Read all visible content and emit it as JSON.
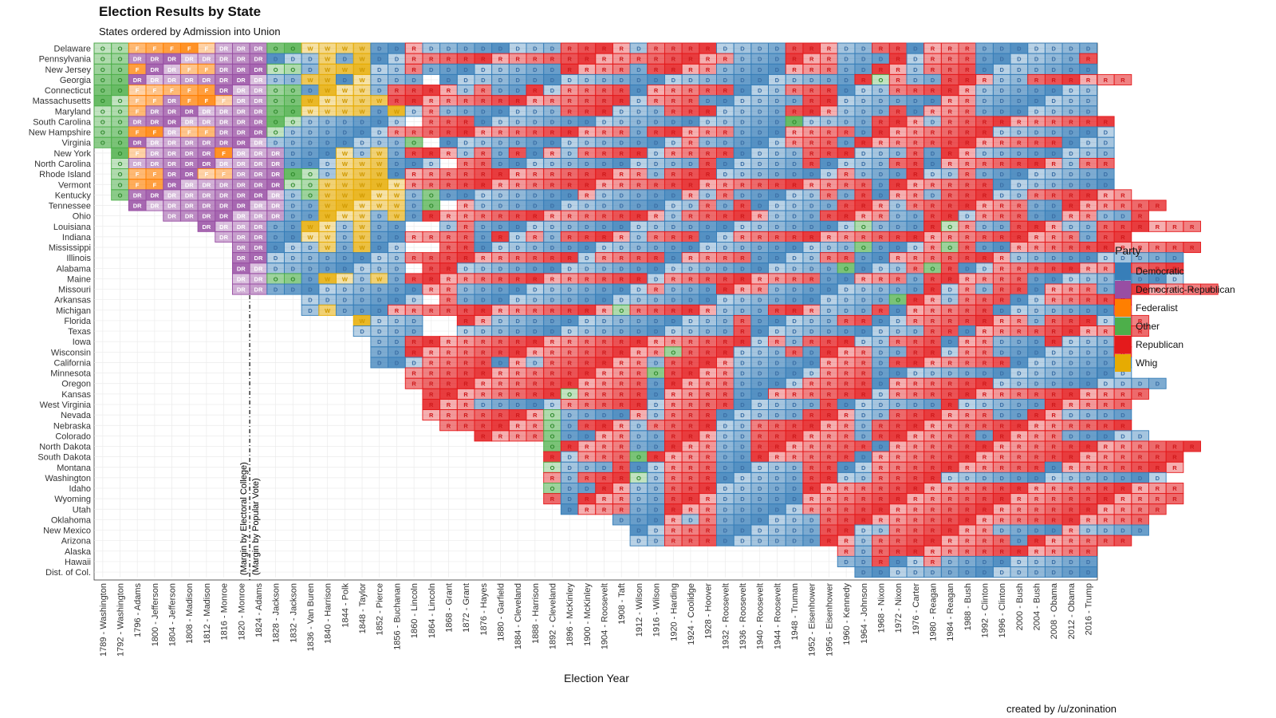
{
  "title": "Election Results by State",
  "subtitle": "States ordered by Admission into Union",
  "credit": "created by /u/zonination",
  "chart_data": {
    "type": "heatmap",
    "xlabel": "Election Year",
    "ylabel": "",
    "x": [
      "1789 - Washington",
      "1792 - Washington",
      "1796 - Adams",
      "1800 - Jefferson",
      "1804 - Jefferson",
      "1808 - Madison",
      "1812 - Madison",
      "1816 - Monroe",
      "1820 - Monroe",
      "1824 - Adams",
      "1828 - Jackson",
      "1832 - Jackson",
      "1836 - Van Buren",
      "1840 - Harrison",
      "1844 - Polk",
      "1848 - Taylor",
      "1852 - Pierce",
      "1856 - Buchanan",
      "1860 - Lincoln",
      "1864 - Lincoln",
      "1868 - Grant",
      "1872 - Grant",
      "1876 - Hayes",
      "1880 - Garfield",
      "1884 - Cleveland",
      "1888 - Harrison",
      "1892 - Cleveland",
      "1896 - McKinley",
      "1900 - McKinley",
      "1904 - Roosevelt",
      "1908 - Taft",
      "1912 - Wilson",
      "1916 - Wilson",
      "1920 - Harding",
      "1924 - Coolidge",
      "1928 - Hoover",
      "1932 - Roosevelt",
      "1936 - Roosevelt",
      "1940 - Roosevelt",
      "1944 - Roosevelt",
      "1948 - Truman",
      "1952 - Eisenhower",
      "1956 - Eisenhower",
      "1960 - Kennedy",
      "1964 - Johnson",
      "1968 - Nixon",
      "1972 - Nixon",
      "1976 - Carter",
      "1980 - Reagan",
      "1984 - Reagan",
      "1988 - Bush",
      "1992 - Clinton",
      "1996 - Clinton",
      "2000 - Bush",
      "2004 - Bush",
      "2008 - Obama",
      "2012 - Obama",
      "2016 - Trump"
    ],
    "legend": {
      "title": "Party",
      "position": "right",
      "entries": [
        {
          "code": "D",
          "label": "Democratic",
          "color": "#377eb8"
        },
        {
          "code": "DR",
          "label": "Democratic-Republican",
          "color": "#984ea3"
        },
        {
          "code": "F",
          "label": "Federalist",
          "color": "#ff7f00"
        },
        {
          "code": "O",
          "label": "Other",
          "color": "#4daf4a"
        },
        {
          "code": "R",
          "label": "Republican",
          "color": "#e41a1c"
        },
        {
          "code": "W",
          "label": "Whig",
          "color": "#e6ab02"
        }
      ]
    },
    "annotations": [
      "(Margin by Electoral College)",
      "(Margin by Popular Vote)"
    ],
    "annotation_after_column": "1820 - Monroe",
    "states": [
      {
        "name": "Delaware",
        "start": 0,
        "cells": "O O F F F F F DR DR DR O O W W W W D D R D D D D D D D D R R R R D R R R R D D D D R R R D D R R D R R R D D D D D D D"
      },
      {
        "name": "Pennsylvania",
        "start": 0,
        "cells": "O O DR DR DR DR DR DR DR DR D D D W D W D D R R R R R R R R R R R R R R R R R R R D D D R R R D D D R D R R R D D D D D D R"
      },
      {
        "name": "New Jersey",
        "start": 0,
        "cells": "O O F DR DR F F DR DR DR O O D W W W D D R D D D D D D D D R R R R D R R R R D D D D R R R D D R R D R R R D D D D D D D"
      },
      {
        "name": "Georgia",
        "start": 0,
        "cells": "O O DR DR DR DR DR DR DR DR D D W W D W D D D - D D D D D D D D D D D D D D D D D D D D D D D D R O R D D R R R D D R R R R R R"
      },
      {
        "name": "Connecticut",
        "start": 0,
        "cells": "O O F F F F F DR DR DR O O D W W W D R R R R D R D D R D R R R R D R R R R R D D D R R R D D D R R R R R D D D D D D D"
      },
      {
        "name": "Massachusetts",
        "start": 0,
        "cells": "O O F F DR F F F DR DR O O W W W W W R R R R R R R R R R R R R R D R R R D D D D D D R R D D D D D D R R D D D D D D D"
      },
      {
        "name": "Maryland",
        "start": 0,
        "cells": "O O F DR DR DR DR DR DR DR O O W W W W D W D R D D D D D D D R R R D D D R R R D D D D R R R D D D R D R R R D D D D D D D"
      },
      {
        "name": "South Carolina",
        "start": 0,
        "cells": "O O DR DR DR DR DR DR DR DR O O D D D D D D - R R R D D D D D D D D D D D D D D D D D D O D D D D R R R D R R R R R R R R R R"
      },
      {
        "name": "New Hampshire",
        "start": 0,
        "cells": "O O F F DR F F DR DR DR O D D D D D D R R R R R R R R R R R R R R D R R R R R D D D R R R R D R R R R R R R D D D D D D D"
      },
      {
        "name": "Virginia",
        "start": 0,
        "cells": "O O DR DR DR DR DR DR DR DR D D D D D D D D O - D D D D D D D D D D D D D D R D D D D D R R R D R R R R R R R R R R R R D D D"
      },
      {
        "name": "New York",
        "start": 1,
        "cells": "O F DR DR DR DR F DR DR DR D D D W D W D R R R D R D R D R D R R R R D R R R R D D D D R R R D D D R D R R D D D D D D D D"
      },
      {
        "name": "North Carolina",
        "start": 1,
        "cells": "O DR DR DR DR DR DR DR DR DR D D D W W W D D D - R R D D D D D D D D D D D D R D D D D D R D D D D R R D R R R R R R R D R R"
      },
      {
        "name": "Rhode Island",
        "start": 1,
        "cells": "O F F DR DR F F DR DR DR O O D W W W D R R R R R R R R R R R R R R D R R R D D D D D D D R D D D R D D R D D D D D D D D"
      },
      {
        "name": "Vermont",
        "start": 1,
        "cells": "O F F DR DR DR DR DR DR DR O O W W W W W R R R R R R R R R R R R R R R R R R R R R R R R R R R D R R R R R R D D D D D D D"
      },
      {
        "name": "Kentucky",
        "start": 1,
        "cells": "O DR DR DR DR DR DR DR DR DR D O W W W W W D O D D D D D D D D R D D D D D R D R D D D D D R D R D R R D R R R D D R R R R R R"
      },
      {
        "name": "Tennessee",
        "start": 2,
        "cells": "DR DR DR DR DR DR DR DR DR D D W W W W W D O - R D D D D D D D D D D D D D R D R D D D D D R R R D R R R R R R R D D R R R R R R"
      },
      {
        "name": "Ohio",
        "start": 4,
        "cells": "DR DR DR DR DR DR DR D D W W W D W D R R R R R R R R R R R R R R D R R R R R D D D R R R R D D R R D R R R D D R R D D R"
      },
      {
        "name": "Louisiana",
        "start": 6,
        "cells": "DR DR DR DR D D W W D W D D - - D R D D D D D D D D D D D D D D D D D D D D D D O D D D R O R D D R R R D D R R R R R R"
      },
      {
        "name": "Indiana",
        "start": 7,
        "cells": "DR DR DR D D W W D W D D R R R R D R D R D R R R R D R R R D D R R R R R R R R R R R R R R R R R R R R D R R"
      },
      {
        "name": "Mississippi",
        "start": 8,
        "cells": "DR DR D D D W D W D D - - R R D D D D D D D D D D D D D D D D D D D D D D O D D D R O R D D R R R R R R R R R R R"
      },
      {
        "name": "Illinois",
        "start": 8,
        "cells": "DR DR D D D D D D D D R R R R R R R R R R D R R R R D R R R R D D D D R R D D R R R R R R R D D D D D D D D D D"
      },
      {
        "name": "Alabama",
        "start": 8,
        "cells": "DR DR D D D D D D D D - R R D D D D D D D D D D D D D D D D D D D D D D O D D D R O R D D R R R R R R R R R R R"
      },
      {
        "name": "Maine",
        "start": 8,
        "cells": "DR DR O O D W W D W D R R R R R R R R R R R R R R D R R R R R R R R R D D R R R D R R R R R R D D D D D D D D D"
      },
      {
        "name": "Missouri",
        "start": 8,
        "cells": "DR DR D D D D D D D D D R R D D D D D D D D D D D R D D D R R R D D D D D D D D D R D R D R R D R R R D D R R R R R"
      },
      {
        "name": "Arkansas",
        "start": 12,
        "cells": "D D D D D D D - R D D D D D D D D D D D D D D D D D D D D D D D D D O R R D R R R D D R R R R R"
      },
      {
        "name": "Michigan",
        "start": 12,
        "cells": "D W D D D R R R R R R R R R R R R R O R R R R R D D D R R R D D D R D R R R R R D D D D D D D R"
      },
      {
        "name": "Florida",
        "start": 15,
        "cells": "W D D D - - R R D D D D D D D D D D D D D D R D D D D D R R D D R R R R R R R D R R R D D R"
      },
      {
        "name": "Texas",
        "start": 15,
        "cells": "D D D D - - D D D D D D D D D D D D D D D D R D D D D D D D D D D R R D R R R R R R R R R R"
      },
      {
        "name": "Iowa",
        "start": 16,
        "cells": "D D R R R R R R R R R R R R R R R R R R R R D R D R R R D D R R R D R R D D D R D D D R"
      },
      {
        "name": "Wisconsin",
        "start": 16,
        "cells": "D D R R R R R R R R R R R R R R R O R R R D D D R D R R R D D R R D R R D D D D D D D R"
      },
      {
        "name": "California",
        "start": 16,
        "cells": "D D D R R R R D R D R R R R R R D R R R R D D D D D R R R D R R R R R R R D D D D D D D"
      },
      {
        "name": "Minnesota",
        "start": 18,
        "cells": "R R R R R R R R R R R R R R O R R R R D D D D D R R R D D D D D D D D D D D D D D D"
      },
      {
        "name": "Oregon",
        "start": 18,
        "cells": "R R R R R R R R R R R R R R D R R R R D D D D R R R R D R R R R R R D D D D D D D D D D"
      },
      {
        "name": "Kansas",
        "start": 19,
        "cells": "R R R R R R R R O R R R R D R R R R D D R R R R R R D R R R R R R R R R R R R R R R"
      },
      {
        "name": "West Virginia",
        "start": 19,
        "cells": "R R R D D D D D R R R R R D R R R R D D D D D R D D D D D D R D D D D D R R R R R"
      },
      {
        "name": "Nevada",
        "start": 19,
        "cells": "R R R R R R R O D D D D R D R R R D D D D D R R R D D R R R R R R D D R R D D D D"
      },
      {
        "name": "Nebraska",
        "start": 20,
        "cells": "R R R R R R O D R R R D R R R R D D R R R R R R D R R R R R R R R R R R R R R R"
      },
      {
        "name": "Colorado",
        "start": 22,
        "cells": "R R R R O D D R R D D R R R D D R R R R R R D R R R R R R D R R R R D D D D D"
      },
      {
        "name": "North Dakota",
        "start": 26,
        "cells": "O R R R R D D R R R D D R R R R R R R D R R R R R R R R R R R R R R R R R R"
      },
      {
        "name": "South Dakota",
        "start": 26,
        "cells": "R D R R R O R R R R D D R R R R R R D R R R R R R R R R R R R R R R R R R"
      },
      {
        "name": "Montana",
        "start": 26,
        "cells": "O D D D R D D R R R D D D D D R R D D R R R R R R R R R R D R R R R R R R"
      },
      {
        "name": "Washington",
        "start": 26,
        "cells": "R D R R R O D R R R D D D D D R R D D R R R R D D D D D D D D D D D D D"
      },
      {
        "name": "Idaho",
        "start": 26,
        "cells": "O D D R R D D R R R D D D D D R R R R R R R R R R R R R R R R R R R R R R"
      },
      {
        "name": "Wyoming",
        "start": 26,
        "cells": "R D R R R D D R R R D D D D D R R R R R R R R R R R R R R R R R R R R R R"
      },
      {
        "name": "Utah",
        "start": 27,
        "cells": "D R R R D D R R R D D D D D R R R R R R R R R R R R R R R R R R R R R"
      },
      {
        "name": "Oklahoma",
        "start": 30,
        "cells": "D D D R D R D D D D D D R R R R R R R R R R R R R R R R R R R"
      },
      {
        "name": "New Mexico",
        "start": 31,
        "cells": "D D R R R D D D D D D R R D D R R R R R R D D D D R D D D D"
      },
      {
        "name": "Arizona",
        "start": 31,
        "cells": "D D R R R D D D D D D R R D R R R R R R R R D R R R R R R"
      },
      {
        "name": "Alaska",
        "start": 43,
        "cells": "R D R R R R R R R R R R R R R"
      },
      {
        "name": "Hawaii",
        "start": 43,
        "cells": "D D R D D R D D D D D D D D D"
      },
      {
        "name": "Dist. of Col.",
        "start": 44,
        "cells": "D D D D D D D D D D D D D D"
      }
    ]
  }
}
